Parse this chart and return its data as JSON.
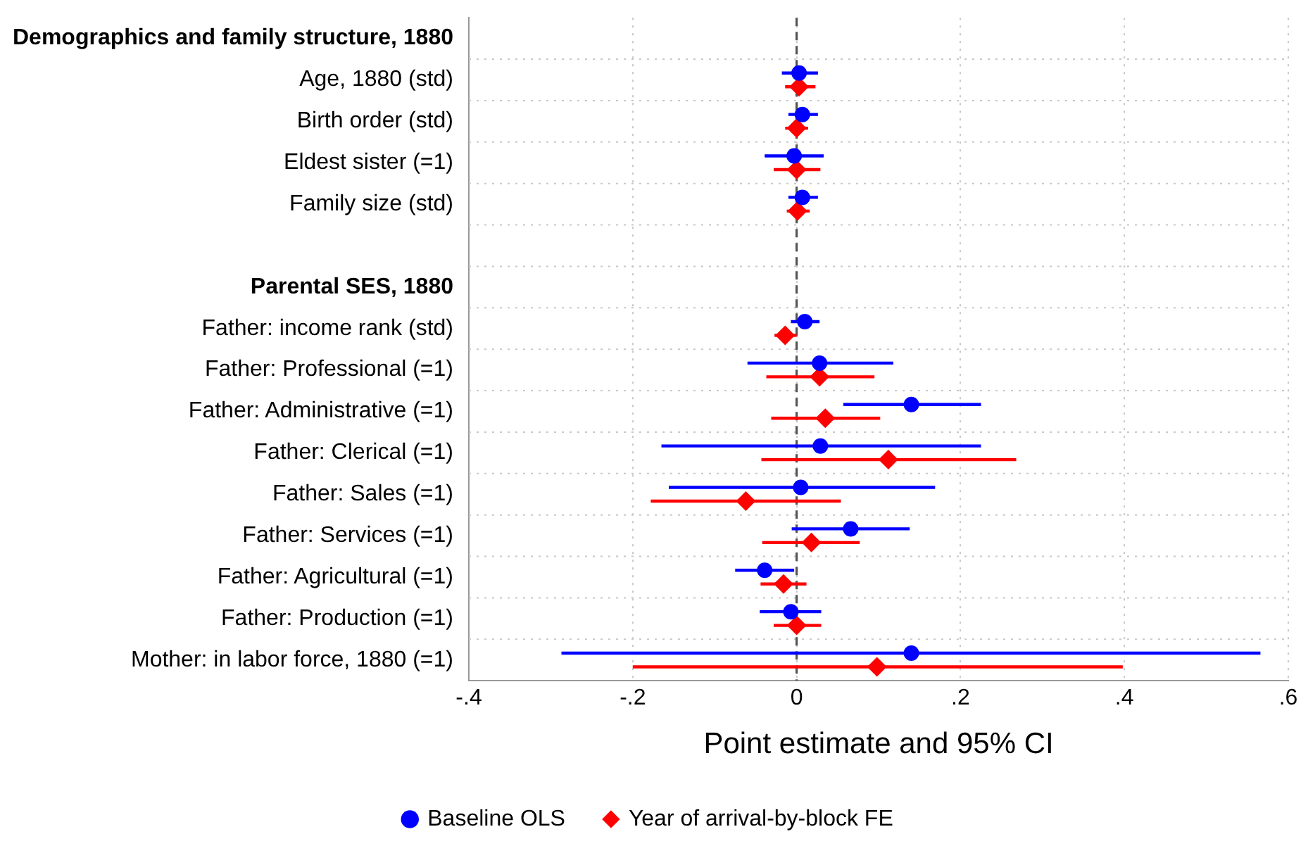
{
  "chart_data": {
    "type": "scatter",
    "orientation": "horizontal",
    "xlabel": "Point estimate and 95% CI",
    "categories": [
      "Demographics and family structure, 1880",
      "Age, 1880 (std)",
      "Birth order (std)",
      "Eldest sister (=1)",
      "Family size (std)",
      null,
      "Parental SES, 1880",
      "Father: income rank (std)",
      "Father: Professional (=1)",
      "Father: Administrative (=1)",
      "Father: Clerical (=1)",
      "Father: Sales (=1)",
      "Father: Services (=1)",
      "Father: Agricultural (=1)",
      "Father: Production (=1)",
      "Mother: in labor force, 1880 (=1)"
    ],
    "series": [
      {
        "name": "Baseline OLS",
        "color": "#0000ff",
        "marker": "circle",
        "values": [
          null,
          0.003,
          0.007,
          -0.003,
          0.007,
          null,
          null,
          0.01,
          0.028,
          0.14,
          0.029,
          0.005,
          0.066,
          -0.039,
          -0.007,
          0.14
        ],
        "errors": [
          null,
          [
            -0.018,
            0.026
          ],
          [
            -0.01,
            0.026
          ],
          [
            -0.039,
            0.033
          ],
          [
            -0.01,
            0.026
          ],
          null,
          null,
          [
            -0.007,
            0.028
          ],
          [
            -0.06,
            0.118
          ],
          [
            0.057,
            0.225
          ],
          [
            -0.165,
            0.225
          ],
          [
            -0.156,
            0.169
          ],
          [
            -0.006,
            0.138
          ],
          [
            -0.075,
            -0.003
          ],
          [
            -0.045,
            0.03
          ],
          [
            -0.287,
            0.566
          ]
        ]
      },
      {
        "name": "Year of arrival-by-block FE",
        "color": "#ff0000",
        "marker": "diamond",
        "values": [
          null,
          0.003,
          0,
          0,
          0.001,
          null,
          null,
          -0.014,
          0.028,
          0.035,
          0.112,
          -0.062,
          0.018,
          -0.016,
          0,
          0.098
        ],
        "errors": [
          null,
          [
            -0.014,
            0.023
          ],
          [
            -0.014,
            0.014
          ],
          [
            -0.028,
            0.029
          ],
          [
            -0.012,
            0.016
          ],
          null,
          null,
          [
            -0.027,
            0
          ],
          [
            -0.037,
            0.095
          ],
          [
            -0.031,
            0.102
          ],
          [
            -0.043,
            0.268
          ],
          [
            -0.178,
            0.054
          ],
          [
            -0.042,
            0.077
          ],
          [
            -0.044,
            0.012
          ],
          [
            -0.028,
            0.03
          ],
          [
            -0.2,
            0.398
          ]
        ]
      }
    ],
    "xlim": [
      -0.4,
      0.6
    ],
    "xticks": [
      {
        "value": -0.4,
        "label": "-.4"
      },
      {
        "value": -0.2,
        "label": "-.2"
      },
      0,
      {
        "value": 0.2,
        "label": ".2"
      },
      {
        "value": 0.4,
        "label": ".4"
      },
      {
        "value": 0.6,
        "label": ".6"
      }
    ],
    "ref_lines": [
      {
        "axis": "x",
        "value": 0,
        "color": "#555555",
        "line_style": "dashed"
      }
    ],
    "grid": true,
    "legend": "bottom"
  }
}
